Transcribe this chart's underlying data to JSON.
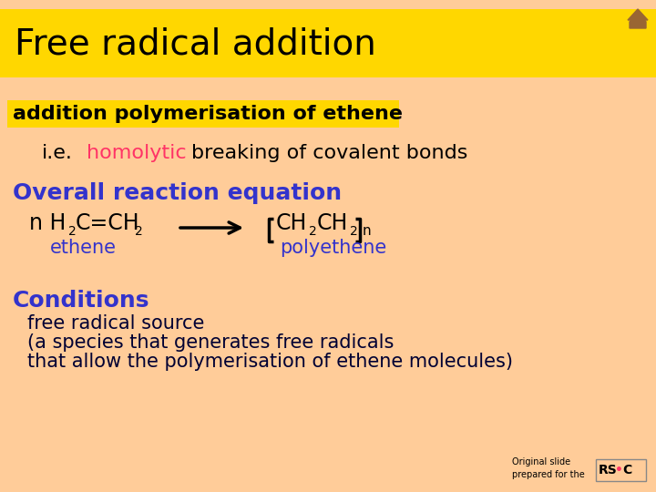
{
  "bg_color": "#FFCC99",
  "title_bg": "#FFD700",
  "title_text": "Free radical addition",
  "title_color": "#000000",
  "title_fontsize": 28,
  "subtitle_bg": "#FFD700",
  "subtitle_text": "addition polymerisation of ethene",
  "subtitle_fontsize": 16,
  "ie_fontsize": 16,
  "overall_text": "Overall reaction equation",
  "conditions_text": "Conditions",
  "blue_color": "#3333CC",
  "red_color": "#FF3366",
  "black_color": "#000000",
  "dark_navy": "#000033",
  "free_radical_lines": [
    "free radical source",
    "(a species that generates free radicals",
    "that allow the polymerisation of ethene molecules)"
  ],
  "free_radical_fontsize": 15,
  "overall_fontsize": 18,
  "conditions_fontsize": 18,
  "home_color": "#996633",
  "rsc_box_color": "#FFCC99"
}
